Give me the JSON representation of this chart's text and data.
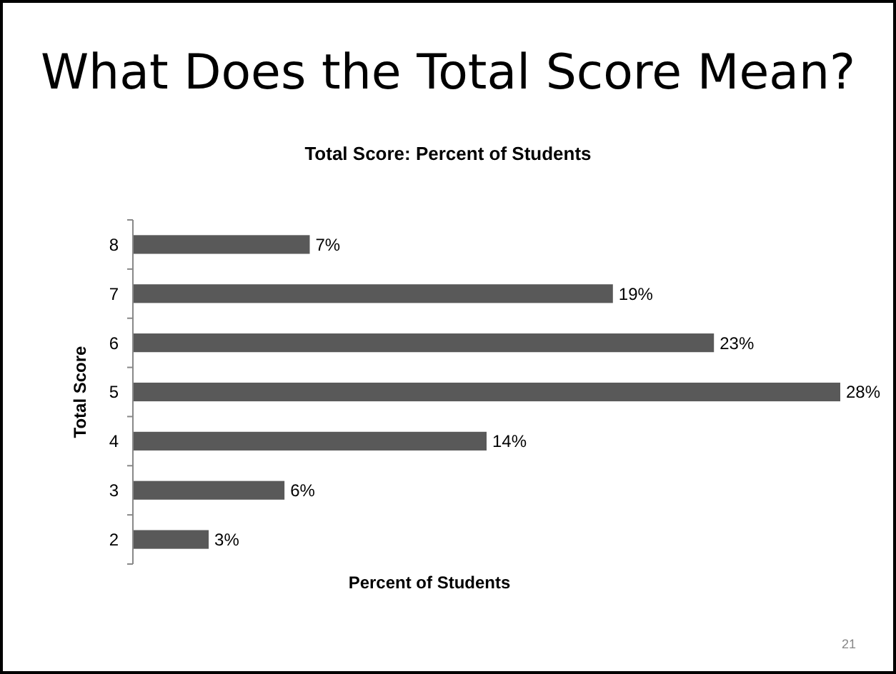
{
  "chart_data": {
    "type": "bar",
    "orientation": "horizontal",
    "title": "What Does the Total Score Mean?",
    "subtitle": "Total Score: Percent of Students",
    "xlabel": "Percent of Students",
    "ylabel": "Total Score",
    "categories": [
      "8",
      "7",
      "6",
      "5",
      "4",
      "3",
      "2"
    ],
    "values": [
      7,
      19,
      23,
      28,
      14,
      6,
      3
    ],
    "value_labels": [
      "7%",
      "19%",
      "23%",
      "28%",
      "14%",
      "6%",
      "3%"
    ],
    "color": "#595959",
    "annotations": [
      "21"
    ]
  }
}
